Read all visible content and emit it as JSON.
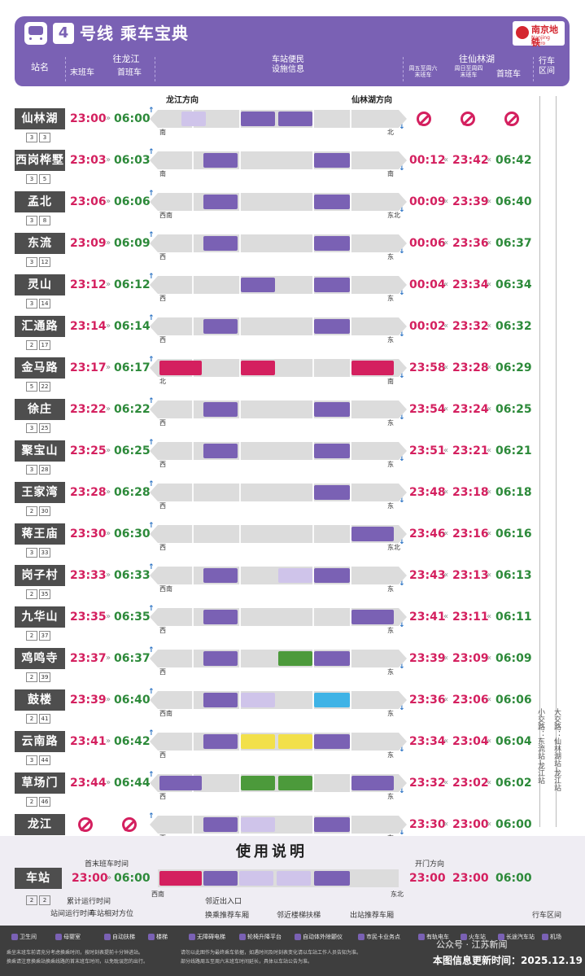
{
  "header": {
    "line_no": "4",
    "title": "号线 乘车宝典",
    "logo_cn": "南京地铁",
    "logo_en": "Nanjing Metro"
  },
  "columns": {
    "station": "站名",
    "to_longjiang": "往龙江",
    "last_train": "末班车",
    "first_train": "首班车",
    "facilities": "车站便民\n设施信息",
    "to_xianlinhu": "往仙林湖",
    "fri_sat": "周五至周六\n末班车",
    "sun_thu": "周日至周四\n末班车",
    "first_train2": "首班车",
    "interval": "行车\n区间"
  },
  "direction_labels": {
    "longjiang": "龙江方向",
    "xianlinhu": "仙林湖方向"
  },
  "stations": [
    {
      "name": "仙林湖",
      "t1": "3",
      "t2": "3",
      "last_lj": "23:00",
      "first_lj": "06:00",
      "fri": "",
      "sun": "",
      "first_xl": "",
      "no_service_xl": true,
      "dir_l": "南",
      "dir_r": "北"
    },
    {
      "name": "西岗桦墅",
      "t1": "3",
      "t2": "5",
      "last_lj": "23:03",
      "first_lj": "06:03",
      "fri": "00:12",
      "sun": "23:42",
      "first_xl": "06:42",
      "dir_l": "南",
      "dir_r": "南"
    },
    {
      "name": "孟北",
      "t1": "3",
      "t2": "8",
      "last_lj": "23:06",
      "first_lj": "06:06",
      "fri": "00:09",
      "sun": "23:39",
      "first_xl": "06:40",
      "dir_l": "西南",
      "dir_r": "东北"
    },
    {
      "name": "东流",
      "t1": "3",
      "t2": "12",
      "last_lj": "23:09",
      "first_lj": "06:09",
      "fri": "00:06",
      "sun": "23:36",
      "first_xl": "06:37",
      "dir_l": "西",
      "dir_r": "东"
    },
    {
      "name": "灵山",
      "t1": "3",
      "t2": "14",
      "last_lj": "23:12",
      "first_lj": "06:12",
      "fri": "00:04",
      "sun": "23:34",
      "first_xl": "06:34",
      "dir_l": "西",
      "dir_r": "东"
    },
    {
      "name": "汇通路",
      "t1": "2",
      "t2": "17",
      "last_lj": "23:14",
      "first_lj": "06:14",
      "fri": "00:02",
      "sun": "23:32",
      "first_xl": "06:32",
      "dir_l": "西",
      "dir_r": "东"
    },
    {
      "name": "金马路",
      "t1": "5",
      "t2": "22",
      "last_lj": "23:17",
      "first_lj": "06:17",
      "fri": "23:58",
      "sun": "23:28",
      "first_xl": "06:29",
      "dir_l": "北",
      "dir_r": "南"
    },
    {
      "name": "徐庄",
      "t1": "3",
      "t2": "25",
      "last_lj": "23:22",
      "first_lj": "06:22",
      "fri": "23:54",
      "sun": "23:24",
      "first_xl": "06:25",
      "dir_l": "西",
      "dir_r": "东"
    },
    {
      "name": "聚宝山",
      "t1": "3",
      "t2": "28",
      "last_lj": "23:25",
      "first_lj": "06:25",
      "fri": "23:51",
      "sun": "23:21",
      "first_xl": "06:21",
      "dir_l": "西",
      "dir_r": "东"
    },
    {
      "name": "王家湾",
      "t1": "2",
      "t2": "30",
      "last_lj": "23:28",
      "first_lj": "06:28",
      "fri": "23:48",
      "sun": "23:18",
      "first_xl": "06:18",
      "dir_l": "西",
      "dir_r": "东"
    },
    {
      "name": "蒋王庙",
      "t1": "3",
      "t2": "33",
      "last_lj": "23:30",
      "first_lj": "06:30",
      "fri": "23:46",
      "sun": "23:16",
      "first_xl": "06:16",
      "dir_l": "西",
      "dir_r": "东北"
    },
    {
      "name": "岗子村",
      "t1": "2",
      "t2": "35",
      "last_lj": "23:33",
      "first_lj": "06:33",
      "fri": "23:43",
      "sun": "23:13",
      "first_xl": "06:13",
      "dir_l": "西南",
      "dir_r": "东"
    },
    {
      "name": "九华山",
      "t1": "2",
      "t2": "37",
      "last_lj": "23:35",
      "first_lj": "06:35",
      "fri": "23:41",
      "sun": "23:11",
      "first_xl": "06:11",
      "dir_l": "西",
      "dir_r": "东"
    },
    {
      "name": "鸡鸣寺",
      "t1": "2",
      "t2": "39",
      "last_lj": "23:37",
      "first_lj": "06:37",
      "fri": "23:39",
      "sun": "23:09",
      "first_xl": "06:09",
      "dir_l": "西",
      "dir_r": "东"
    },
    {
      "name": "鼓楼",
      "t1": "2",
      "t2": "41",
      "last_lj": "23:39",
      "first_lj": "06:40",
      "fri": "23:36",
      "sun": "23:06",
      "first_xl": "06:06",
      "dir_l": "西南",
      "dir_r": "东"
    },
    {
      "name": "云南路",
      "t1": "3",
      "t2": "44",
      "last_lj": "23:41",
      "first_lj": "06:42",
      "fri": "23:34",
      "sun": "23:04",
      "first_xl": "06:04",
      "dir_l": "西",
      "dir_r": "东"
    },
    {
      "name": "草场门",
      "t1": "2",
      "t2": "46",
      "last_lj": "23:44",
      "first_lj": "06:44",
      "fri": "23:32",
      "sun": "23:02",
      "first_xl": "06:02",
      "dir_l": "西",
      "dir_r": "东"
    },
    {
      "name": "龙江",
      "t1": "",
      "t2": "",
      "last_lj": "",
      "first_lj": "",
      "no_service_lj": true,
      "fri": "23:30",
      "sun": "23:00",
      "first_xl": "06:00",
      "dir_l": "西",
      "dir_r": "东"
    }
  ],
  "side_text": {
    "left": "小交路：东流站-龙江站",
    "right": "大交路：仙林湖站-龙江站"
  },
  "instructions": {
    "title": "使用说明",
    "station": "车站",
    "last": "23:00",
    "first": "06:00",
    "last_r": "23:00",
    "last_r2": "23:00",
    "first_r": "06:00",
    "first_last_label": "首末班车时间",
    "door_dir": "开门方向",
    "cumulative": "累计运行时间",
    "run_time": "站间运行时间",
    "relative_pos": "车站相对方位",
    "near_exit": "邻近出入口",
    "transfer_car": "换乘推荐车厢",
    "near_escalator": "邻近楼梯扶梯",
    "exit_car": "出站推荐车厢",
    "interval": "行车区间",
    "dir_l": "西南",
    "dir_r": "东北"
  },
  "legend": {
    "items": [
      "卫生间",
      "母婴室",
      "自动扶梯",
      "楼梯",
      "无障碍电梯",
      "轮椅升降平台",
      "自动体外除颤仪",
      "市民卡业务点",
      "有轨电车",
      "火车站",
      "长途汽车站",
      "机场"
    ],
    "note1": "乘坐末班车前请充分考虑换乘时间，按时刻表提前十分钟进站。",
    "note2": "换乘请注意换乘站换乘线路的首末班车时间，以免耽误您的出行。",
    "note3": "请勿以此图作为最终乘车依据，如遇时间及时刻表变化请以车站工作人员告知为准。",
    "note4": "部分线路周五至周六末班车时间延长，具体以车站公告为准。",
    "watermark": "公众号 · 江苏新闻",
    "update": "本图信息更新时间：2025.12.19"
  }
}
